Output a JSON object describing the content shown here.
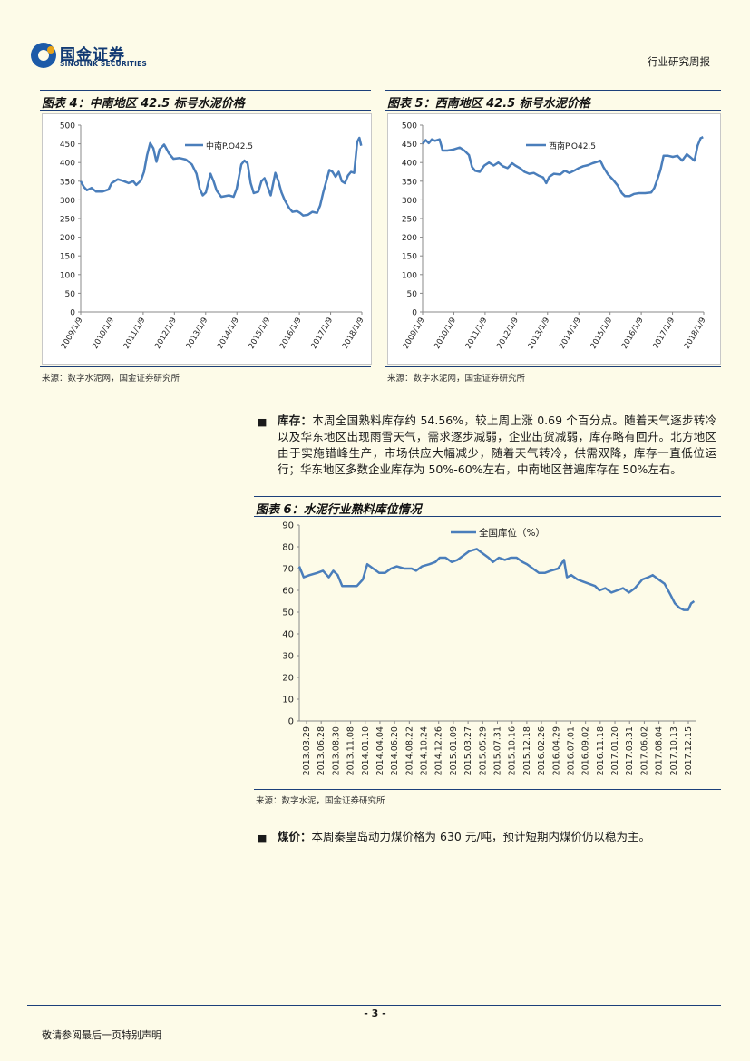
{
  "header": {
    "logo_cn": "国金证券",
    "logo_en": "SINOLINK SECURITIES",
    "report_type": "行业研究周报"
  },
  "fig4": {
    "title": "图表 4：中南地区 42.5 标号水泥价格",
    "source": "来源：数字水泥网，国金证券研究所"
  },
  "fig5": {
    "title": "图表 5：西南地区 42.5 标号水泥价格",
    "source": "来源：数字水泥网，国金证券研究所"
  },
  "inventory": {
    "label": "库存：",
    "text": "本周全国熟料库存约 54.56%，较上周上涨 0.69 个百分点。随着天气逐步转冷以及华东地区出现雨雪天气，需求逐步减弱，企业出货减弱，库存略有回升。北方地区由于实施错峰生产，市场供应大幅减少，随着天气转冷，供需双降，库存一直低位运行；华东地区多数企业库存为 50%-60%左右，中南地区普遍库存在 50%左右。"
  },
  "fig6": {
    "title": "图表 6：水泥行业熟料库位情况",
    "source": "来源：数字水泥，国金证券研究所"
  },
  "coal": {
    "label": "煤价：",
    "text": "本周秦皇岛动力煤价格为 630 元/吨，预计短期内煤价仍以稳为主。"
  },
  "footer": {
    "page": "- 3 -",
    "disclaimer": "敬请参阅最后一页特别声明"
  },
  "chart_data": [
    {
      "type": "line",
      "title": "图表 4：中南地区 42.5 标号水泥价格",
      "legend": "中南P.O42.5",
      "legend_position": "top-left",
      "x_ticks": [
        "2009/1/9",
        "2010/1/9",
        "2011/1/9",
        "2012/1/9",
        "2013/1/9",
        "2014/1/9",
        "2015/1/9",
        "2016/1/9",
        "2017/1/9",
        "2018/1/9"
      ],
      "y_ticks": [
        "0",
        "50",
        "100",
        "150",
        "200",
        "250",
        "300",
        "350",
        "400",
        "450",
        "500"
      ],
      "ylim": [
        0,
        500
      ],
      "xlim": [
        2009.0,
        2018.1
      ],
      "points": [
        [
          2009.0,
          350
        ],
        [
          2009.1,
          335
        ],
        [
          2009.2,
          326
        ],
        [
          2009.35,
          332
        ],
        [
          2009.5,
          322
        ],
        [
          2009.7,
          322
        ],
        [
          2009.9,
          328
        ],
        [
          2010.0,
          345
        ],
        [
          2010.2,
          355
        ],
        [
          2010.4,
          350
        ],
        [
          2010.55,
          345
        ],
        [
          2010.7,
          350
        ],
        [
          2010.8,
          340
        ],
        [
          2010.95,
          352
        ],
        [
          2011.05,
          375
        ],
        [
          2011.15,
          420
        ],
        [
          2011.25,
          452
        ],
        [
          2011.35,
          438
        ],
        [
          2011.45,
          402
        ],
        [
          2011.55,
          435
        ],
        [
          2011.7,
          448
        ],
        [
          2011.85,
          425
        ],
        [
          2012.0,
          410
        ],
        [
          2012.2,
          412
        ],
        [
          2012.4,
          408
        ],
        [
          2012.6,
          395
        ],
        [
          2012.75,
          370
        ],
        [
          2012.85,
          330
        ],
        [
          2012.95,
          312
        ],
        [
          2013.05,
          320
        ],
        [
          2013.2,
          370
        ],
        [
          2013.3,
          350
        ],
        [
          2013.4,
          325
        ],
        [
          2013.55,
          308
        ],
        [
          2013.8,
          312
        ],
        [
          2013.95,
          308
        ],
        [
          2014.05,
          330
        ],
        [
          2014.2,
          395
        ],
        [
          2014.3,
          405
        ],
        [
          2014.4,
          398
        ],
        [
          2014.5,
          345
        ],
        [
          2014.6,
          318
        ],
        [
          2014.75,
          322
        ],
        [
          2014.85,
          350
        ],
        [
          2014.95,
          358
        ],
        [
          2015.05,
          335
        ],
        [
          2015.15,
          312
        ],
        [
          2015.3,
          372
        ],
        [
          2015.4,
          350
        ],
        [
          2015.5,
          320
        ],
        [
          2015.6,
          300
        ],
        [
          2015.75,
          278
        ],
        [
          2015.85,
          268
        ],
        [
          2016.0,
          270
        ],
        [
          2016.1,
          265
        ],
        [
          2016.2,
          258
        ],
        [
          2016.35,
          260
        ],
        [
          2016.5,
          268
        ],
        [
          2016.65,
          265
        ],
        [
          2016.75,
          285
        ],
        [
          2016.85,
          320
        ],
        [
          2016.95,
          350
        ],
        [
          2017.05,
          380
        ],
        [
          2017.15,
          375
        ],
        [
          2017.25,
          362
        ],
        [
          2017.35,
          375
        ],
        [
          2017.45,
          350
        ],
        [
          2017.55,
          345
        ],
        [
          2017.65,
          365
        ],
        [
          2017.75,
          375
        ],
        [
          2017.85,
          372
        ],
        [
          2017.95,
          455
        ],
        [
          2018.02,
          466
        ],
        [
          2018.08,
          445
        ]
      ]
    },
    {
      "type": "line",
      "title": "图表 5：西南地区 42.5 标号水泥价格",
      "legend": "西南P.O42.5",
      "legend_position": "top-left",
      "x_ticks": [
        "2009/1/9",
        "2010/1/9",
        "2011/1/9",
        "2012/1/9",
        "2013/1/9",
        "2014/1/9",
        "2015/1/9",
        "2016/1/9",
        "2017/1/9",
        "2018/1/9"
      ],
      "y_ticks": [
        "0",
        "50",
        "100",
        "150",
        "200",
        "250",
        "300",
        "350",
        "400",
        "450",
        "500"
      ],
      "ylim": [
        0,
        500
      ],
      "xlim": [
        2009.0,
        2018.1
      ],
      "points": [
        [
          2009.0,
          450
        ],
        [
          2009.1,
          460
        ],
        [
          2009.2,
          452
        ],
        [
          2009.3,
          462
        ],
        [
          2009.4,
          458
        ],
        [
          2009.55,
          462
        ],
        [
          2009.65,
          432
        ],
        [
          2009.8,
          432
        ],
        [
          2010.0,
          435
        ],
        [
          2010.2,
          440
        ],
        [
          2010.35,
          432
        ],
        [
          2010.5,
          420
        ],
        [
          2010.6,
          388
        ],
        [
          2010.7,
          378
        ],
        [
          2010.85,
          375
        ],
        [
          2011.0,
          392
        ],
        [
          2011.15,
          400
        ],
        [
          2011.3,
          392
        ],
        [
          2011.45,
          400
        ],
        [
          2011.6,
          390
        ],
        [
          2011.75,
          385
        ],
        [
          2011.9,
          398
        ],
        [
          2012.0,
          392
        ],
        [
          2012.15,
          385
        ],
        [
          2012.3,
          375
        ],
        [
          2012.45,
          370
        ],
        [
          2012.6,
          372
        ],
        [
          2012.75,
          365
        ],
        [
          2012.9,
          360
        ],
        [
          2013.0,
          345
        ],
        [
          2013.1,
          362
        ],
        [
          2013.25,
          370
        ],
        [
          2013.45,
          368
        ],
        [
          2013.6,
          378
        ],
        [
          2013.75,
          372
        ],
        [
          2013.9,
          378
        ],
        [
          2014.05,
          385
        ],
        [
          2014.2,
          390
        ],
        [
          2014.35,
          393
        ],
        [
          2014.5,
          398
        ],
        [
          2014.65,
          402
        ],
        [
          2014.75,
          405
        ],
        [
          2014.85,
          388
        ],
        [
          2015.0,
          368
        ],
        [
          2015.15,
          355
        ],
        [
          2015.3,
          340
        ],
        [
          2015.45,
          318
        ],
        [
          2015.55,
          310
        ],
        [
          2015.7,
          310
        ],
        [
          2015.85,
          316
        ],
        [
          2016.0,
          318
        ],
        [
          2016.2,
          318
        ],
        [
          2016.4,
          320
        ],
        [
          2016.5,
          332
        ],
        [
          2016.6,
          355
        ],
        [
          2016.7,
          380
        ],
        [
          2016.8,
          418
        ],
        [
          2016.95,
          418
        ],
        [
          2017.1,
          415
        ],
        [
          2017.25,
          418
        ],
        [
          2017.4,
          405
        ],
        [
          2017.55,
          422
        ],
        [
          2017.7,
          412
        ],
        [
          2017.8,
          405
        ],
        [
          2017.9,
          445
        ],
        [
          2018.0,
          465
        ],
        [
          2018.08,
          468
        ]
      ]
    },
    {
      "type": "line",
      "title": "图表 6：水泥行业熟料库位情况",
      "legend": "全国库位（%）",
      "legend_position": "top-center",
      "x_ticks": [
        "2013.03.29",
        "2013.06.28",
        "2013.08.30",
        "2013.11.08",
        "2014.01.10",
        "2014.04.04",
        "2014.06.20",
        "2014.08.22",
        "2014.10.24",
        "2014.12.26",
        "2015.01.09",
        "2015.03.27",
        "2015.05.29",
        "2015.07.31",
        "2015.10.16",
        "2015.12.18",
        "2016.02.26",
        "2016.04.29",
        "2016.07.01",
        "2016.09.02",
        "2016.11.18",
        "2017.01.20",
        "2017.03.31",
        "2017.06.02",
        "2017.08.04",
        "2017.10.13",
        "2017.12.15"
      ],
      "y_ticks": [
        "0",
        "10",
        "20",
        "30",
        "40",
        "50",
        "60",
        "70",
        "80",
        "90"
      ],
      "ylim": [
        0,
        90
      ],
      "xlim": [
        0,
        26.8
      ],
      "points": [
        [
          0.0,
          71
        ],
        [
          0.3,
          66
        ],
        [
          0.7,
          67
        ],
        [
          1.2,
          68
        ],
        [
          1.6,
          69
        ],
        [
          2.0,
          66
        ],
        [
          2.3,
          69
        ],
        [
          2.6,
          67
        ],
        [
          2.9,
          62
        ],
        [
          3.4,
          62
        ],
        [
          3.9,
          62
        ],
        [
          4.3,
          65
        ],
        [
          4.6,
          72
        ],
        [
          5.0,
          70
        ],
        [
          5.4,
          68
        ],
        [
          5.8,
          68
        ],
        [
          6.2,
          70
        ],
        [
          6.6,
          71
        ],
        [
          7.1,
          70
        ],
        [
          7.6,
          70
        ],
        [
          7.9,
          69
        ],
        [
          8.3,
          71
        ],
        [
          8.8,
          72
        ],
        [
          9.2,
          73
        ],
        [
          9.5,
          75
        ],
        [
          9.9,
          75
        ],
        [
          10.3,
          73
        ],
        [
          10.7,
          74
        ],
        [
          11.1,
          76
        ],
        [
          11.5,
          78
        ],
        [
          12.0,
          79
        ],
        [
          12.4,
          77
        ],
        [
          12.8,
          75
        ],
        [
          13.1,
          73
        ],
        [
          13.5,
          75
        ],
        [
          13.9,
          74
        ],
        [
          14.3,
          75
        ],
        [
          14.7,
          75
        ],
        [
          15.1,
          73
        ],
        [
          15.4,
          72
        ],
        [
          15.8,
          70
        ],
        [
          16.2,
          68
        ],
        [
          16.6,
          68
        ],
        [
          17.0,
          69
        ],
        [
          17.5,
          70
        ],
        [
          17.9,
          74
        ],
        [
          18.1,
          66
        ],
        [
          18.4,
          67
        ],
        [
          18.8,
          65
        ],
        [
          19.2,
          64
        ],
        [
          19.6,
          63
        ],
        [
          20.0,
          62
        ],
        [
          20.3,
          60
        ],
        [
          20.7,
          61
        ],
        [
          21.1,
          59
        ],
        [
          21.5,
          60
        ],
        [
          21.9,
          61
        ],
        [
          22.3,
          59
        ],
        [
          22.7,
          61
        ],
        [
          23.2,
          65
        ],
        [
          23.6,
          66
        ],
        [
          23.9,
          67
        ],
        [
          24.3,
          65
        ],
        [
          24.7,
          63
        ],
        [
          25.1,
          58
        ],
        [
          25.4,
          54
        ],
        [
          25.7,
          52
        ],
        [
          26.0,
          51
        ],
        [
          26.3,
          51
        ],
        [
          26.5,
          54
        ],
        [
          26.7,
          55
        ]
      ]
    }
  ]
}
